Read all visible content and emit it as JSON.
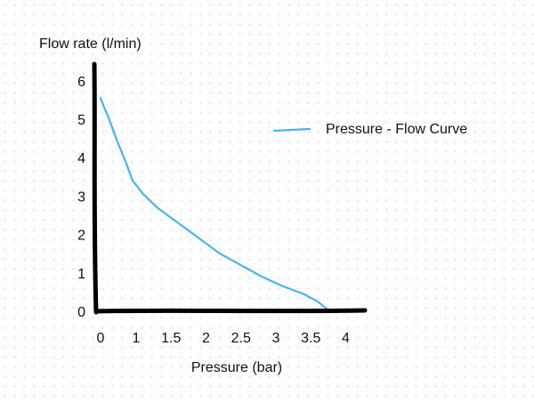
{
  "chart_data": {
    "type": "line",
    "title": "",
    "xlabel": "Pressure (bar)",
    "ylabel": "Flow rate (l/min)",
    "x_ticks": [
      "0",
      "1",
      "1.5",
      "2",
      "2.5",
      "3",
      "3.5",
      "4"
    ],
    "y_ticks": [
      "0",
      "1",
      "2",
      "3",
      "4",
      "5",
      "6"
    ],
    "xlim": [
      0,
      4.3
    ],
    "ylim": [
      0,
      6.4
    ],
    "grid": false,
    "legend": "right",
    "series": [
      {
        "name": "Pressure - Flow Curve",
        "color": "#4ab4ef",
        "x": [
          0,
          0.1,
          0.2,
          0.3,
          0.5,
          0.7,
          0.9,
          1.1,
          1.3,
          1.6,
          1.9,
          2.2,
          2.5,
          2.8,
          3.1,
          3.4,
          3.6,
          3.7,
          3.8
        ],
        "y": [
          5.55,
          5.3,
          5.1,
          4.85,
          4.35,
          3.9,
          3.4,
          3.05,
          2.7,
          2.3,
          1.9,
          1.5,
          1.2,
          0.9,
          0.65,
          0.45,
          0.25,
          0.1,
          0.0
        ]
      }
    ]
  }
}
